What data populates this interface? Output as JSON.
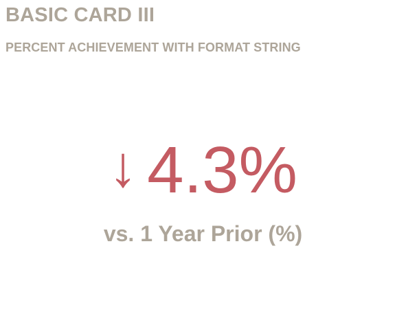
{
  "card": {
    "title": "BASIC CARD III",
    "subtitle": "PERCENT ACHIEVEMENT WITH FORMAT STRING",
    "kpi": {
      "arrow_glyph": "↓",
      "arrow_icon": "arrow-down-icon",
      "value": "4.3%",
      "label": "vs. 1 Year Prior (%)",
      "direction": "down"
    }
  },
  "colors": {
    "title": "#ada599",
    "negative": "#c45b62",
    "background": "#ffffff"
  }
}
